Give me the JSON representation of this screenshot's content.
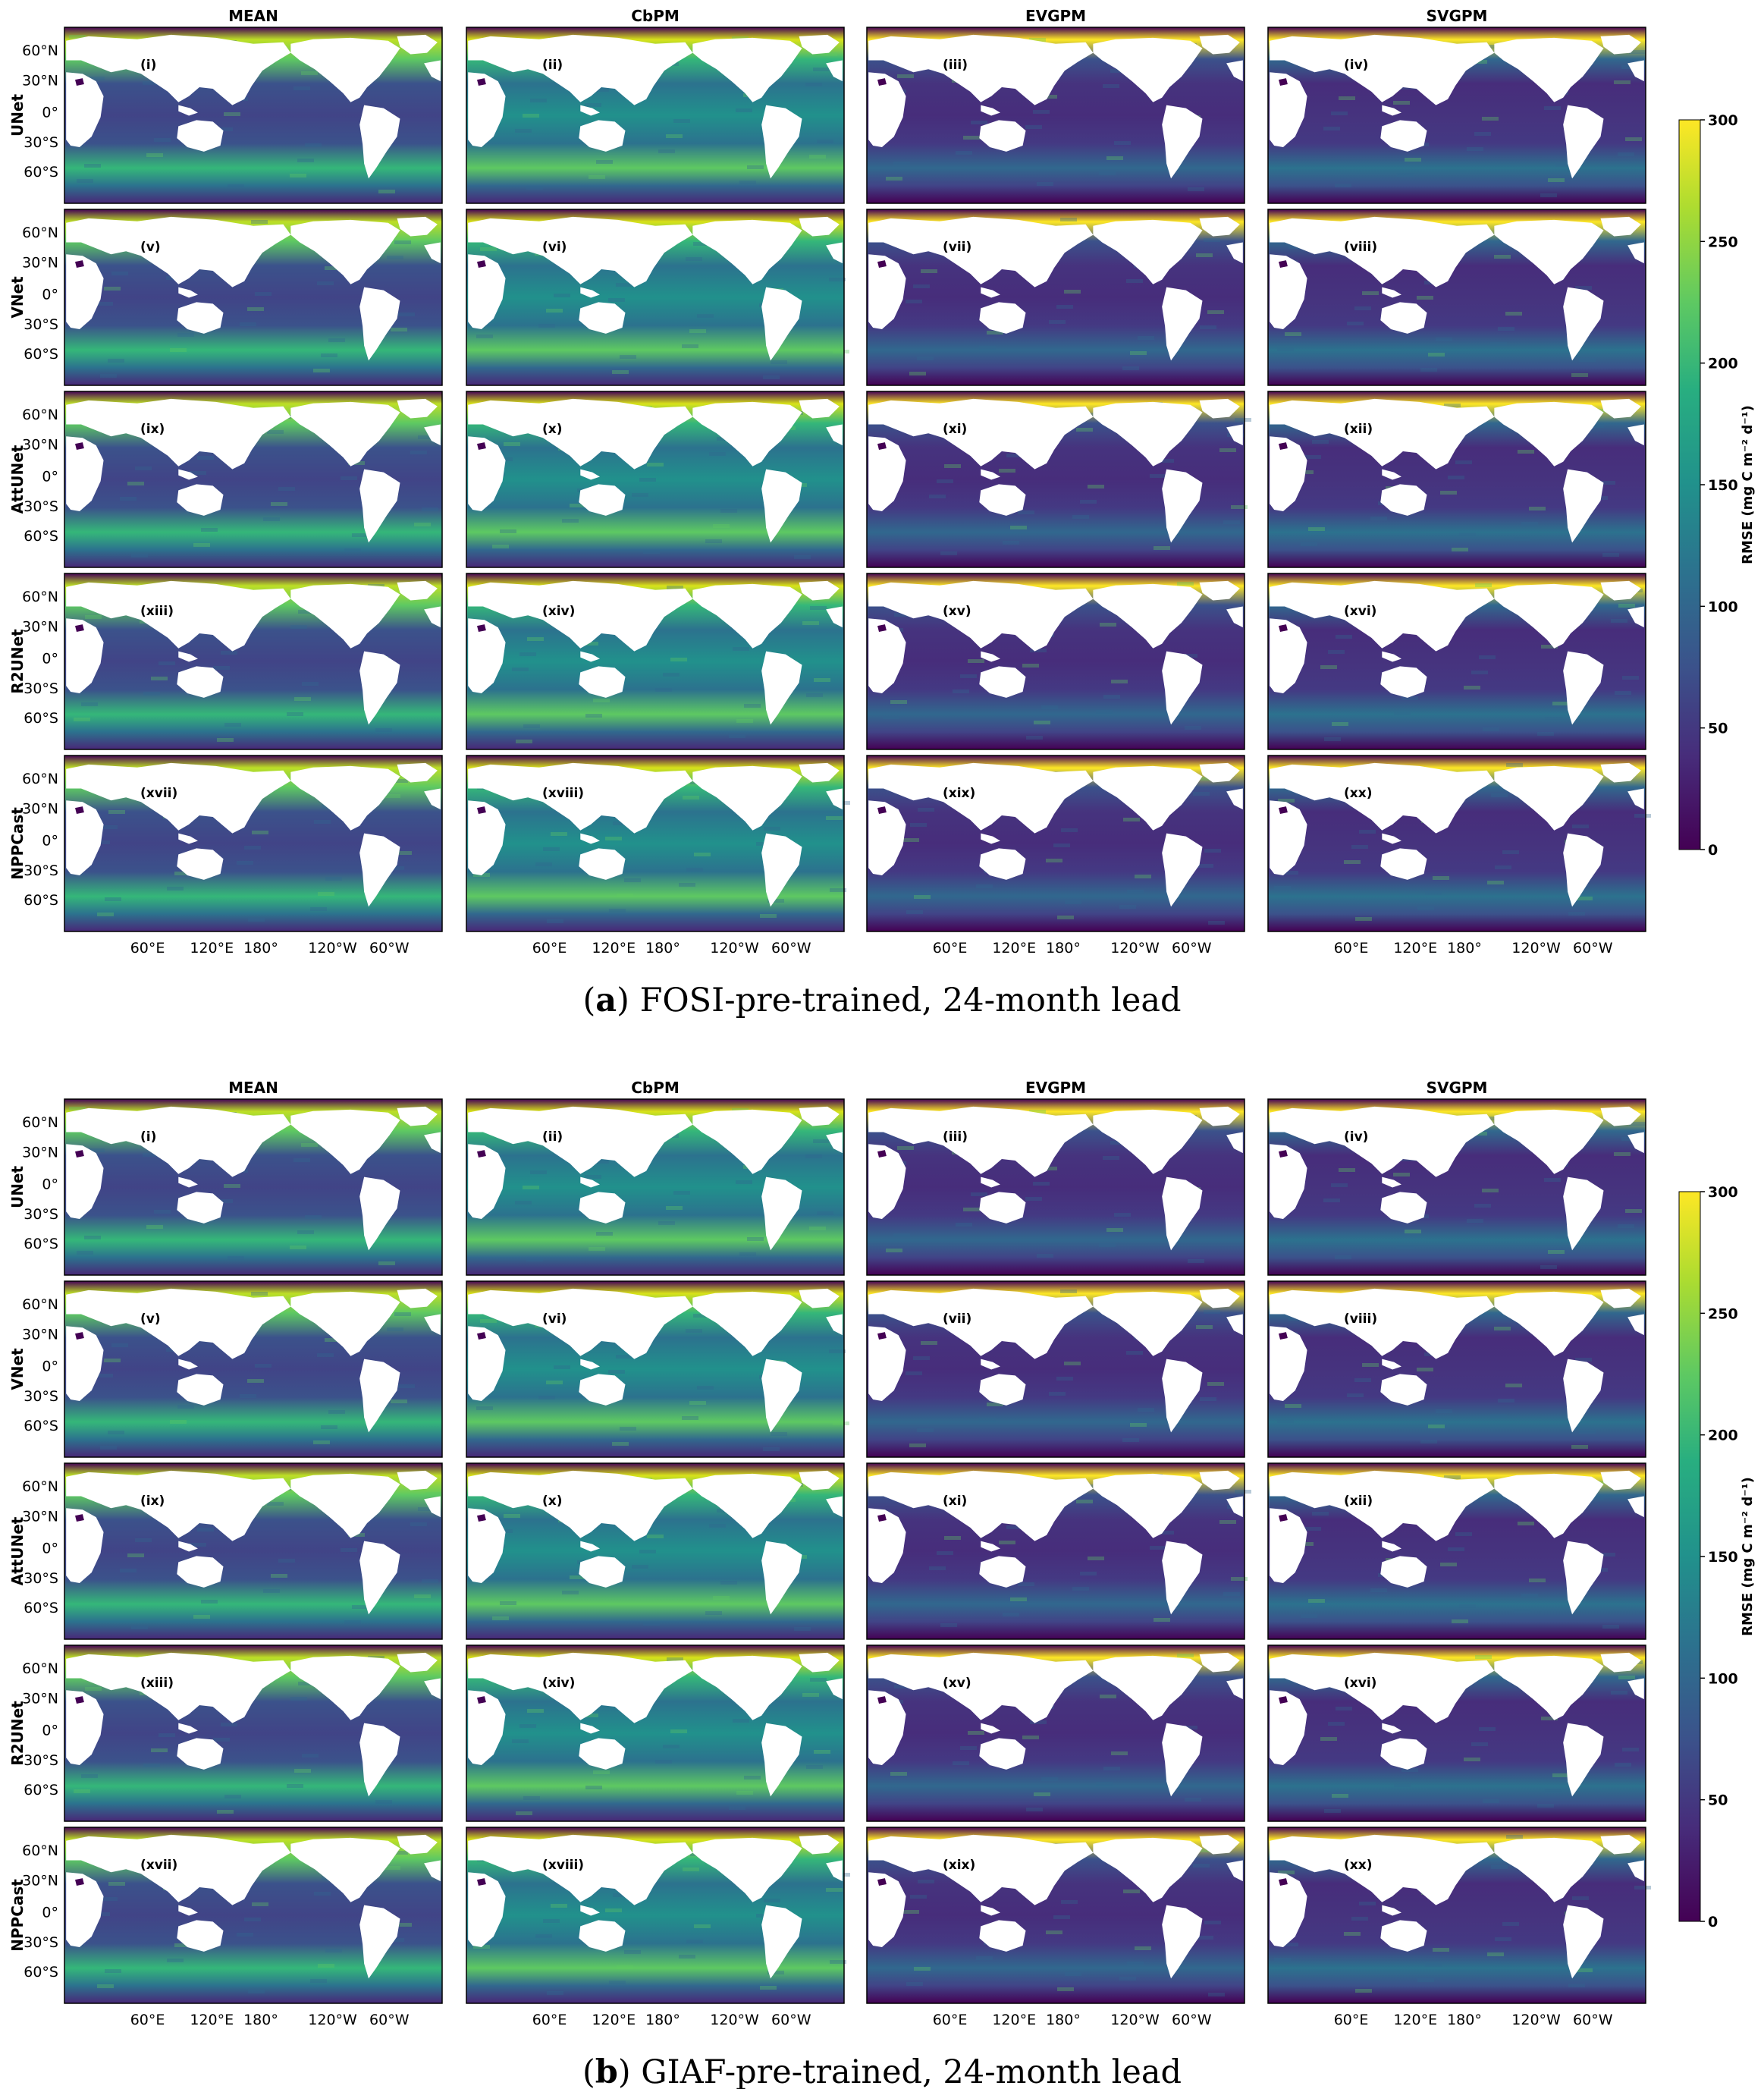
{
  "chart_data": [
    {
      "type": "heatmap",
      "caption_letter": "a",
      "caption_text": "FOSI-pre-trained, 24-month lead",
      "columns": [
        "MEAN",
        "CbPM",
        "EVGPM",
        "SVGPM"
      ],
      "rows": [
        "UNet",
        "VNet",
        "AttUNet",
        "R2UNet",
        "NPPCast"
      ],
      "panel_labels": [
        "(i)",
        "(ii)",
        "(iii)",
        "(iv)",
        "(v)",
        "(vi)",
        "(vii)",
        "(viii)",
        "(ix)",
        "(x)",
        "(xi)",
        "(xii)",
        "(xiii)",
        "(xiv)",
        "(xv)",
        "(xvi)",
        "(xvii)",
        "(xviii)",
        "(xix)",
        "(xx)"
      ],
      "lat_ticks": [
        "60°N",
        "30°N",
        "0°",
        "30°S",
        "60°S"
      ],
      "lon_ticks": [
        "60°E",
        "120°E",
        "180°",
        "120°W",
        "60°W"
      ],
      "colorbar": {
        "label": "RMSE (mg C m⁻² d⁻¹)",
        "ticks": [
          0,
          50,
          100,
          150,
          200,
          250,
          300
        ],
        "range": [
          0,
          300
        ],
        "colormap": "viridis"
      }
    },
    {
      "type": "heatmap",
      "caption_letter": "b",
      "caption_text": "GIAF-pre-trained, 24-month lead",
      "columns": [
        "MEAN",
        "CbPM",
        "EVGPM",
        "SVGPM"
      ],
      "rows": [
        "UNet",
        "VNet",
        "AttUNet",
        "R2UNet",
        "NPPCast"
      ],
      "panel_labels": [
        "(i)",
        "(ii)",
        "(iii)",
        "(iv)",
        "(v)",
        "(vi)",
        "(vii)",
        "(viii)",
        "(ix)",
        "(x)",
        "(xi)",
        "(xii)",
        "(xiii)",
        "(xiv)",
        "(xv)",
        "(xvi)",
        "(xvii)",
        "(xviii)",
        "(xix)",
        "(xx)"
      ],
      "lat_ticks": [
        "60°N",
        "30°N",
        "0°",
        "30°S",
        "60°S"
      ],
      "lon_ticks": [
        "60°E",
        "120°E",
        "180°",
        "120°W",
        "60°W"
      ],
      "colorbar": {
        "label": "RMSE (mg C m⁻² d⁻¹)",
        "ticks": [
          0,
          50,
          100,
          150,
          200,
          250,
          300
        ],
        "range": [
          0,
          300
        ],
        "colormap": "viridis"
      }
    }
  ],
  "colors": {
    "viridis_low": "#440154",
    "viridis_mid": "#21918c",
    "viridis_high": "#fde725",
    "land": "#ffffff"
  }
}
